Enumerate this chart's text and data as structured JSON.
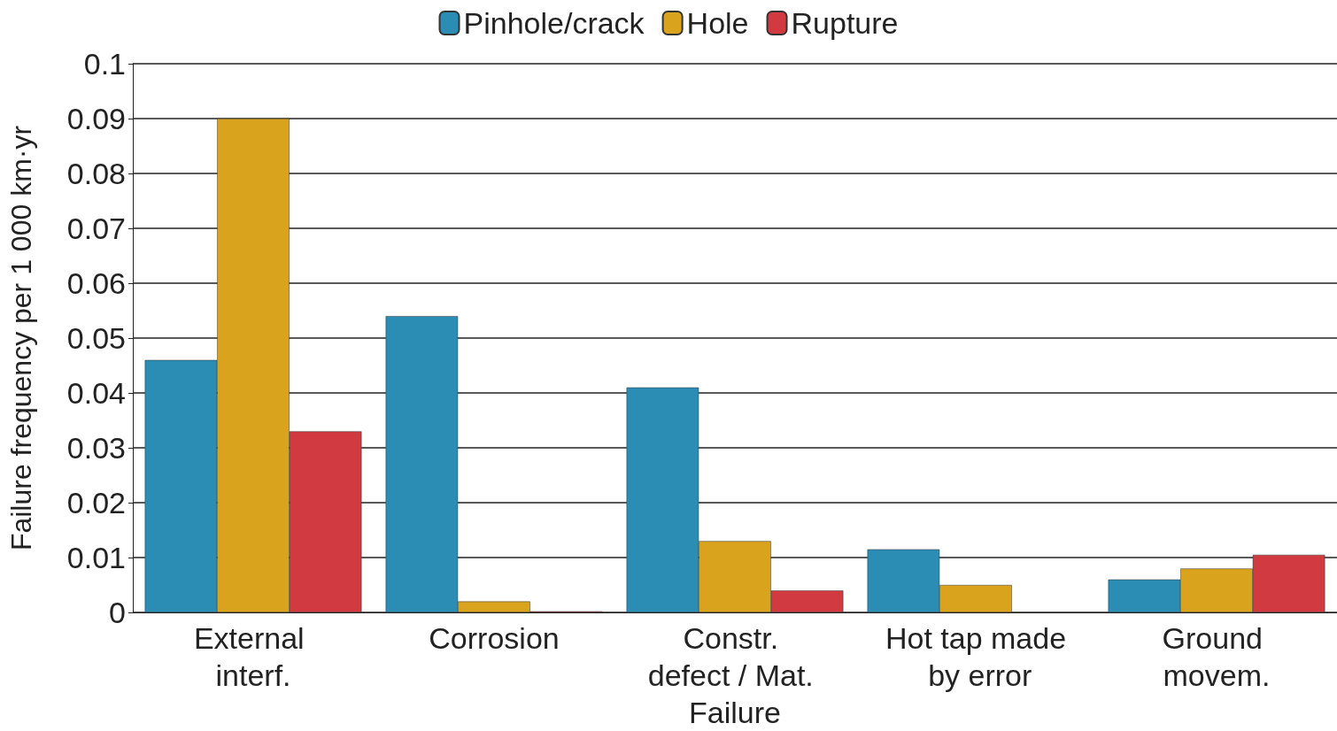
{
  "chart_data": {
    "type": "bar",
    "ylabel": "Failure frequency per 1 000 km·yr",
    "categories": [
      "External interf.",
      "Corrosion",
      "Constr. defect / Mat. Failure",
      "Hot tap made by error",
      "Ground movem."
    ],
    "series": [
      {
        "name": "Pinhole/crack",
        "color": "#2b8db3",
        "values": [
          0.046,
          0.054,
          0.041,
          0.0115,
          0.006
        ]
      },
      {
        "name": "Hole",
        "color": "#d9a31e",
        "values": [
          0.09,
          0.002,
          0.013,
          0.005,
          0.008
        ]
      },
      {
        "name": "Rupture",
        "color": "#d13a40",
        "values": [
          0.033,
          0.0002,
          0.004,
          null,
          0.0105
        ]
      }
    ],
    "ylim": [
      0,
      0.1
    ],
    "yticks": [
      0,
      0.01,
      0.02,
      0.03,
      0.04,
      0.05,
      0.06,
      0.07,
      0.08,
      0.09,
      0.1
    ],
    "grid": "y",
    "legend": "top"
  }
}
